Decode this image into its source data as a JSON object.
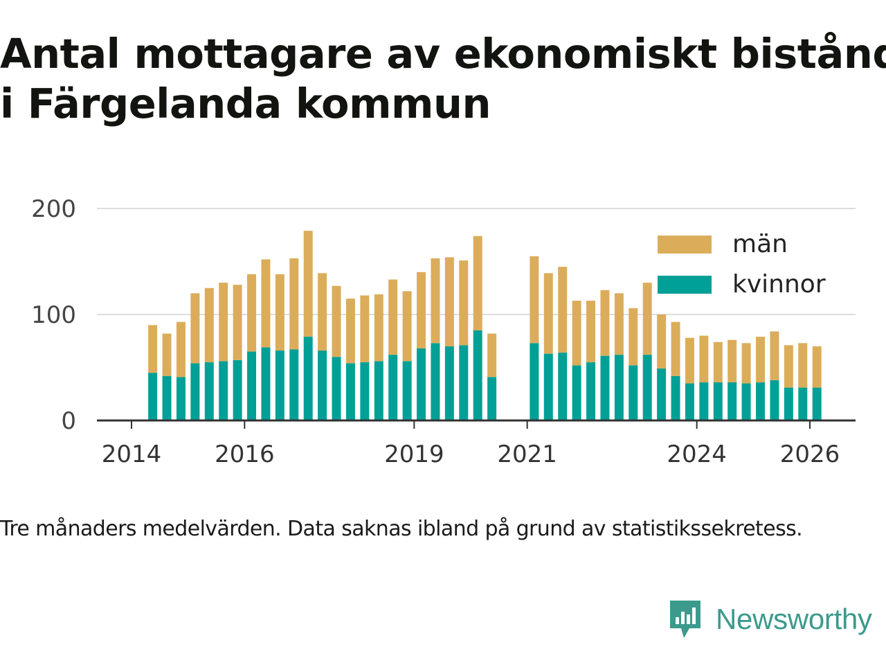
{
  "header": {
    "title_line1": "Antal mottagare av ekonomiskt bistånd",
    "title_line2": "i Färgelanda kommun"
  },
  "footer": {
    "caption": "Tre månaders medelvärden. Data saknas ibland på grund av statistikssekretess.",
    "brand": "Newsworthy"
  },
  "colors": {
    "man": "#dbad5b",
    "kvinnor": "#00a096",
    "gridline": "#dddddd",
    "axis": "#333333",
    "brand": "#3b9a8c"
  },
  "chart_data": {
    "type": "bar",
    "stacked": true,
    "title": "Antal mottagare av ekonomiskt bistånd i Färgelanda kommun",
    "xlabel": "",
    "ylabel": "",
    "ylim": [
      0,
      200
    ],
    "yticks": [
      0,
      100,
      200
    ],
    "xticks": [
      2014,
      2016,
      2019,
      2021,
      2024,
      2026
    ],
    "grid": true,
    "legend_position": "top-right",
    "period_axis": {
      "start_year": 2014.0,
      "end_year": 2026.25
    },
    "categories": [
      "2014-Q2",
      "2014-Q3",
      "2014-Q4",
      "2015-Q1",
      "2015-Q2",
      "2015-Q3",
      "2015-Q4",
      "2016-Q1",
      "2016-Q2",
      "2016-Q3",
      "2016-Q4",
      "2017-Q1",
      "2017-Q2",
      "2017-Q3",
      "2017-Q4",
      "2018-Q1",
      "2018-Q2",
      "2018-Q3",
      "2018-Q4",
      "2019-Q1",
      "2019-Q2",
      "2019-Q3",
      "2019-Q4",
      "2020-Q1",
      "2020-Q2",
      "2020-Q3",
      "2020-Q4",
      "2021-Q1",
      "2021-Q2",
      "2021-Q3",
      "2021-Q4",
      "2022-Q1",
      "2022-Q2",
      "2022-Q3",
      "2022-Q4",
      "2023-Q1",
      "2023-Q2",
      "2023-Q3",
      "2023-Q4",
      "2024-Q1",
      "2024-Q2",
      "2024-Q3",
      "2024-Q4",
      "2025-Q1",
      "2025-Q2",
      "2025-Q3",
      "2025-Q4",
      "2026-Q1"
    ],
    "x": [
      2014.375,
      2014.625,
      2014.875,
      2015.125,
      2015.375,
      2015.625,
      2015.875,
      2016.125,
      2016.375,
      2016.625,
      2016.875,
      2017.125,
      2017.375,
      2017.625,
      2017.875,
      2018.125,
      2018.375,
      2018.625,
      2018.875,
      2019.125,
      2019.375,
      2019.625,
      2019.875,
      2020.125,
      2020.375,
      2020.625,
      2020.875,
      2021.125,
      2021.375,
      2021.625,
      2021.875,
      2022.125,
      2022.375,
      2022.625,
      2022.875,
      2023.125,
      2023.375,
      2023.625,
      2023.875,
      2024.125,
      2024.375,
      2024.625,
      2024.875,
      2025.125,
      2025.375,
      2025.625,
      2025.875,
      2026.125
    ],
    "series": [
      {
        "name": "kvinnor",
        "values": [
          45,
          42,
          41,
          54,
          55,
          56,
          57,
          65,
          69,
          66,
          67,
          79,
          66,
          60,
          54,
          55,
          56,
          62,
          56,
          68,
          73,
          70,
          71,
          85,
          41,
          null,
          null,
          73,
          63,
          64,
          52,
          55,
          61,
          62,
          52,
          62,
          49,
          42,
          35,
          36,
          36,
          36,
          35,
          36,
          38,
          31,
          31,
          31
        ]
      },
      {
        "name": "män",
        "values": [
          45,
          40,
          52,
          66,
          70,
          74,
          71,
          73,
          83,
          72,
          86,
          100,
          73,
          67,
          61,
          63,
          63,
          71,
          66,
          72,
          80,
          84,
          80,
          89,
          41,
          null,
          null,
          82,
          76,
          81,
          61,
          58,
          62,
          58,
          54,
          68,
          51,
          51,
          43,
          44,
          38,
          40,
          38,
          43,
          46,
          40,
          42,
          39
        ]
      }
    ]
  }
}
